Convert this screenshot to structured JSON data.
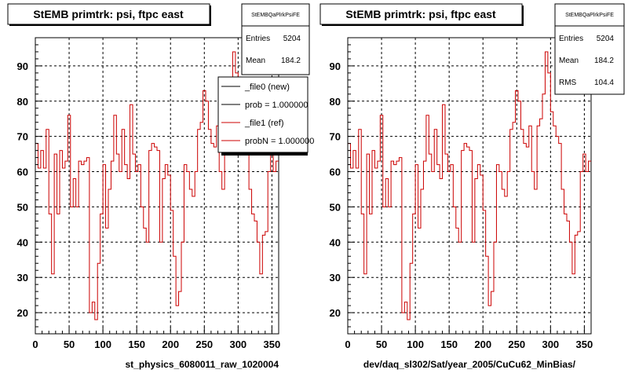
{
  "panels": [
    {
      "title": "StEMB primtrk: psi, ftpc east",
      "xlabel": "st_physics_6080011_raw_1020004",
      "stats": {
        "name": "StEMBQaPlrkPsiFE",
        "rows": [
          {
            "label": "Entries",
            "value": "5204"
          },
          {
            "label": "Mean",
            "value": "184.2"
          }
        ]
      },
      "legend": [
        {
          "label": "_file0 (new)",
          "color": "#000000"
        },
        {
          "label": "prob = 1.000000",
          "color": "#000000"
        },
        {
          "label": "_file1 (ref)",
          "color": "#cc0000"
        },
        {
          "label": "probN = 1.000000",
          "color": "#cc0000"
        }
      ]
    },
    {
      "title": "StEMB primtrk: psi, ftpc east",
      "xlabel": "dev/daq_sl302/Sat/year_2005/CuCu62_MinBias/",
      "stats": {
        "name": "StEMBQaPlrkPsiFE",
        "rows": [
          {
            "label": "Entries",
            "value": "5204"
          },
          {
            "label": "Mean",
            "value": "184.2"
          },
          {
            "label": "RMS",
            "value": "104.4"
          }
        ]
      },
      "legend": []
    }
  ],
  "chart_data": {
    "type": "step",
    "title": "StEMB primtrk: psi, ftpc east",
    "xlim": [
      0,
      360
    ],
    "ylim": [
      14,
      98
    ],
    "xticks": [
      0,
      50,
      100,
      150,
      200,
      250,
      300,
      350
    ],
    "yticks": [
      20,
      30,
      40,
      50,
      60,
      70,
      80,
      90
    ],
    "bin_width": 4,
    "series": [
      {
        "name": "_file1 (ref)",
        "color": "#cc0000",
        "bin_starts": [
          0,
          4,
          8,
          12,
          16,
          20,
          24,
          28,
          32,
          36,
          40,
          44,
          48,
          52,
          56,
          60,
          64,
          68,
          72,
          76,
          80,
          84,
          88,
          92,
          96,
          100,
          104,
          108,
          112,
          116,
          120,
          124,
          128,
          132,
          136,
          140,
          144,
          148,
          152,
          156,
          160,
          164,
          168,
          172,
          176,
          180,
          184,
          188,
          192,
          196,
          200,
          204,
          208,
          212,
          216,
          220,
          224,
          228,
          232,
          236,
          240,
          244,
          248,
          252,
          256,
          260,
          264,
          268,
          272,
          276,
          280,
          284,
          288,
          292,
          296,
          300,
          304,
          308,
          312,
          316,
          320,
          324,
          328,
          332,
          336,
          340,
          344,
          348,
          352,
          356
        ],
        "values": [
          68,
          61,
          66,
          61,
          72,
          48,
          31,
          65,
          48,
          66,
          61,
          63,
          76,
          50,
          58,
          50,
          63,
          62,
          63,
          64,
          20,
          23,
          18,
          34,
          48,
          62,
          44,
          55,
          63,
          76,
          65,
          60,
          72,
          62,
          58,
          79,
          65,
          60,
          62,
          50,
          44,
          40,
          66,
          68,
          67,
          66,
          40,
          58,
          62,
          59,
          49,
          36,
          22,
          26,
          40,
          62,
          60,
          55,
          53,
          60,
          72,
          74,
          83,
          80,
          72,
          68,
          67,
          73,
          60,
          55,
          73,
          75,
          82,
          94,
          88,
          77,
          73,
          70,
          68,
          55,
          48,
          46,
          40,
          31,
          42,
          43,
          60,
          65,
          60,
          63
        ]
      }
    ]
  }
}
